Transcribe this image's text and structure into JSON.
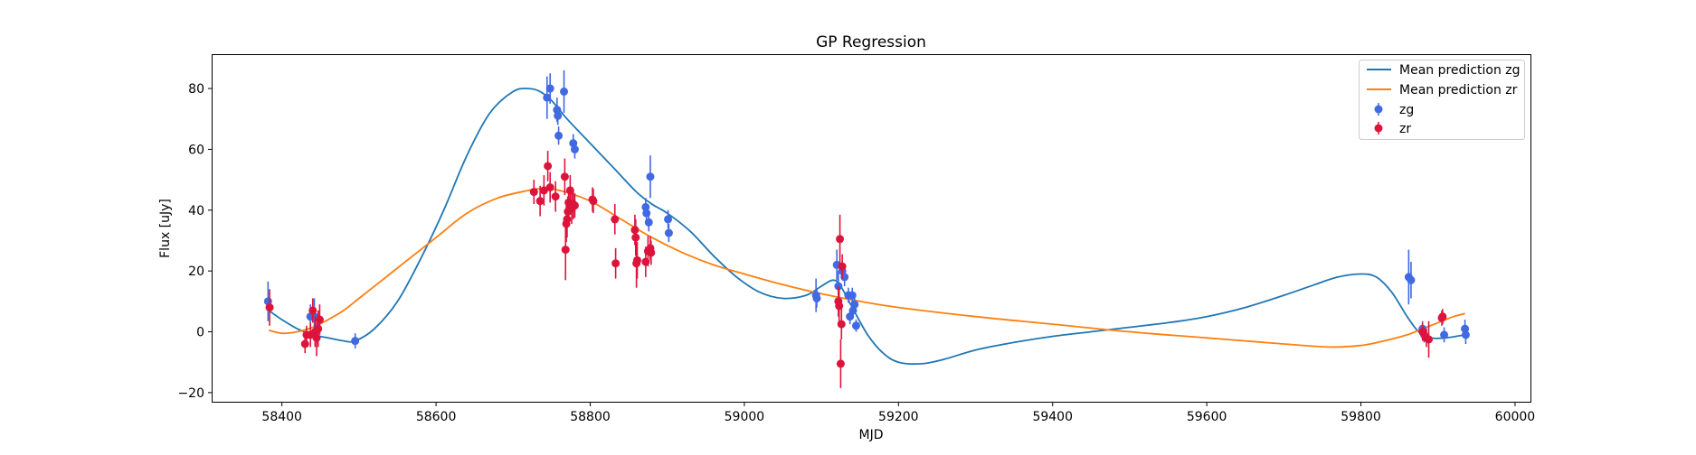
{
  "chart_data": {
    "type": "scatter",
    "title": "GP Regression",
    "xlabel": "MJD",
    "ylabel": "Flux [uJy]",
    "xlim": [
      58310,
      60020
    ],
    "ylim": [
      -23,
      91
    ],
    "xticks": [
      58400,
      58600,
      58800,
      59000,
      59200,
      59400,
      59600,
      59800,
      60000
    ],
    "yticks": [
      -20,
      0,
      20,
      40,
      60,
      80
    ],
    "grid": false,
    "legend_position": "upper right",
    "legend": {
      "mean_zg": "Mean prediction zg",
      "mean_zr": "Mean prediction zr",
      "zg": "zg",
      "zr": "zr"
    },
    "colors": {
      "mean_zg": "#1f77b4",
      "mean_zr": "#ff7f0e",
      "zg": "#4169e1",
      "zr": "#dc143c"
    },
    "series": [
      {
        "name": "Mean prediction zg",
        "kind": "line",
        "x": [
          58383,
          58400,
          58420,
          58440,
          58460,
          58480,
          58495,
          58520,
          58550,
          58580,
          58610,
          58640,
          58670,
          58700,
          58720,
          58735,
          58750,
          58770,
          58800,
          58830,
          58860,
          58880,
          58900,
          58930,
          58960,
          58990,
          59020,
          59050,
          59080,
          59100,
          59115,
          59125,
          59140,
          59160,
          59180,
          59200,
          59230,
          59260,
          59300,
          59350,
          59400,
          59450,
          59500,
          59550,
          59600,
          59650,
          59700,
          59740,
          59770,
          59800,
          59820,
          59840,
          59860,
          59875,
          59890,
          59910,
          59935
        ],
        "y": [
          7,
          4,
          1,
          -1,
          -2,
          -3,
          -3,
          1,
          10,
          24,
          40,
          58,
          72,
          79,
          80,
          79,
          76,
          70,
          62,
          54,
          46,
          42,
          39,
          33,
          25,
          18,
          13,
          11,
          12,
          15,
          17,
          15,
          8,
          -1,
          -7,
          -10,
          -10.5,
          -9,
          -6,
          -3.5,
          -1.5,
          0,
          1.5,
          3,
          5,
          8,
          12,
          15.5,
          18,
          19,
          18,
          13,
          5,
          0,
          -2,
          -2,
          -1
        ]
      },
      {
        "name": "Mean prediction zr",
        "kind": "line",
        "x": [
          58383,
          58400,
          58420,
          58440,
          58460,
          58480,
          58500,
          58530,
          58560,
          58600,
          58640,
          58680,
          58720,
          58735,
          58760,
          58800,
          58840,
          58880,
          58920,
          58960,
          59000,
          59050,
          59100,
          59150,
          59200,
          59300,
          59400,
          59500,
          59600,
          59700,
          59760,
          59800,
          59830,
          59860,
          59880,
          59900,
          59920,
          59935
        ],
        "y": [
          0.5,
          -0.5,
          0,
          1.5,
          4,
          7,
          11,
          17,
          23,
          31,
          39,
          44,
          46.5,
          47,
          46.5,
          43,
          37,
          31,
          26,
          22,
          19,
          15.5,
          12.5,
          10,
          8,
          5,
          2.5,
          0,
          -2,
          -4,
          -5,
          -4.5,
          -3,
          -1,
          1,
          3,
          5,
          6
        ]
      },
      {
        "name": "zg",
        "kind": "errorbar",
        "points": [
          {
            "x": 58382,
            "y": 10,
            "e": 6.5
          },
          {
            "x": 58437,
            "y": 5,
            "e": 4
          },
          {
            "x": 58442,
            "y": 5,
            "e": 6
          },
          {
            "x": 58495,
            "y": -3,
            "e": 2.5
          },
          {
            "x": 58744,
            "y": 77,
            "e": 7
          },
          {
            "x": 58748,
            "y": 80,
            "e": 5
          },
          {
            "x": 58757,
            "y": 73,
            "e": 4
          },
          {
            "x": 58758,
            "y": 71,
            "e": 3
          },
          {
            "x": 58759,
            "y": 64.5,
            "e": 3
          },
          {
            "x": 58766,
            "y": 79,
            "e": 7
          },
          {
            "x": 58778,
            "y": 62,
            "e": 3
          },
          {
            "x": 58780,
            "y": 60,
            "e": 3
          },
          {
            "x": 58872,
            "y": 41,
            "e": 3
          },
          {
            "x": 58873,
            "y": 39,
            "e": 3
          },
          {
            "x": 58876,
            "y": 36,
            "e": 3
          },
          {
            "x": 58878,
            "y": 51,
            "e": 7
          },
          {
            "x": 58901,
            "y": 37,
            "e": 3
          },
          {
            "x": 58902,
            "y": 32.5,
            "e": 3
          },
          {
            "x": 59093,
            "y": 12,
            "e": 5.5
          },
          {
            "x": 59094,
            "y": 11,
            "e": 3
          },
          {
            "x": 59120,
            "y": 22,
            "e": 5
          },
          {
            "x": 59122,
            "y": 15,
            "e": 5
          },
          {
            "x": 59127,
            "y": 20,
            "e": 3
          },
          {
            "x": 59130,
            "y": 18,
            "e": 3
          },
          {
            "x": 59135,
            "y": 12,
            "e": 2.5
          },
          {
            "x": 59137,
            "y": 5,
            "e": 2.5
          },
          {
            "x": 59140,
            "y": 12,
            "e": 2.5
          },
          {
            "x": 59141,
            "y": 7,
            "e": 2.5
          },
          {
            "x": 59143,
            "y": 9,
            "e": 2.5
          },
          {
            "x": 59145,
            "y": 2,
            "e": 2
          },
          {
            "x": 59862,
            "y": 18,
            "e": 9
          },
          {
            "x": 59865,
            "y": 17,
            "e": 6
          },
          {
            "x": 59880,
            "y": 1,
            "e": 2.5
          },
          {
            "x": 59882,
            "y": -1,
            "e": 2.5
          },
          {
            "x": 59908,
            "y": -1,
            "e": 2.5
          },
          {
            "x": 59935,
            "y": 1,
            "e": 3
          },
          {
            "x": 59936,
            "y": -1,
            "e": 3
          }
        ]
      },
      {
        "name": "zr",
        "kind": "errorbar",
        "points": [
          {
            "x": 58384,
            "y": 8,
            "e": 6
          },
          {
            "x": 58430,
            "y": -4,
            "e": 3
          },
          {
            "x": 58432,
            "y": -1,
            "e": 3
          },
          {
            "x": 58437,
            "y": -1,
            "e": 4
          },
          {
            "x": 58440,
            "y": 7,
            "e": 4
          },
          {
            "x": 58443,
            "y": 0,
            "e": 5
          },
          {
            "x": 58445,
            "y": -2,
            "e": 6
          },
          {
            "x": 58447,
            "y": 1,
            "e": 6
          },
          {
            "x": 58449,
            "y": 4,
            "e": 5
          },
          {
            "x": 58727,
            "y": 46,
            "e": 4
          },
          {
            "x": 58735,
            "y": 43,
            "e": 5
          },
          {
            "x": 58740,
            "y": 46.5,
            "e": 5
          },
          {
            "x": 58745,
            "y": 54.5,
            "e": 5
          },
          {
            "x": 58748,
            "y": 47.5,
            "e": 5
          },
          {
            "x": 58755,
            "y": 44.5,
            "e": 5
          },
          {
            "x": 58767,
            "y": 51,
            "e": 6
          },
          {
            "x": 58768,
            "y": 27,
            "e": 10
          },
          {
            "x": 58769,
            "y": 35.5,
            "e": 6
          },
          {
            "x": 58770,
            "y": 37,
            "e": 6
          },
          {
            "x": 58771,
            "y": 39.5,
            "e": 5
          },
          {
            "x": 58772,
            "y": 42.5,
            "e": 5
          },
          {
            "x": 58774,
            "y": 46.5,
            "e": 5
          },
          {
            "x": 58776,
            "y": 40.5,
            "e": 5
          },
          {
            "x": 58778,
            "y": 42,
            "e": 5
          },
          {
            "x": 58780,
            "y": 41.5,
            "e": 4
          },
          {
            "x": 58803,
            "y": 43.5,
            "e": 4
          },
          {
            "x": 58804,
            "y": 43,
            "e": 4
          },
          {
            "x": 58832,
            "y": 37,
            "e": 5
          },
          {
            "x": 58833,
            "y": 22.5,
            "e": 5
          },
          {
            "x": 58858,
            "y": 33.5,
            "e": 5
          },
          {
            "x": 58859,
            "y": 31,
            "e": 6
          },
          {
            "x": 58860,
            "y": 22.5,
            "e": 8
          },
          {
            "x": 58861,
            "y": 23.5,
            "e": 6
          },
          {
            "x": 58872,
            "y": 23,
            "e": 5
          },
          {
            "x": 58875,
            "y": 26.5,
            "e": 5
          },
          {
            "x": 58878,
            "y": 27.5,
            "e": 4
          },
          {
            "x": 58879,
            "y": 26,
            "e": 4
          },
          {
            "x": 59122,
            "y": 10,
            "e": 5
          },
          {
            "x": 59123,
            "y": 8.5,
            "e": 6
          },
          {
            "x": 59124,
            "y": 30.5,
            "e": 8
          },
          {
            "x": 59125,
            "y": -10.5,
            "e": 8
          },
          {
            "x": 59126,
            "y": 2.5,
            "e": 5
          },
          {
            "x": 59127,
            "y": 21.5,
            "e": 4
          },
          {
            "x": 59880,
            "y": 0,
            "e": 3
          },
          {
            "x": 59885,
            "y": -2,
            "e": 3
          },
          {
            "x": 59888,
            "y": -2.5,
            "e": 6
          },
          {
            "x": 59905,
            "y": 4.5,
            "e": 2.5
          },
          {
            "x": 59906,
            "y": 5,
            "e": 2.5
          }
        ]
      }
    ]
  }
}
